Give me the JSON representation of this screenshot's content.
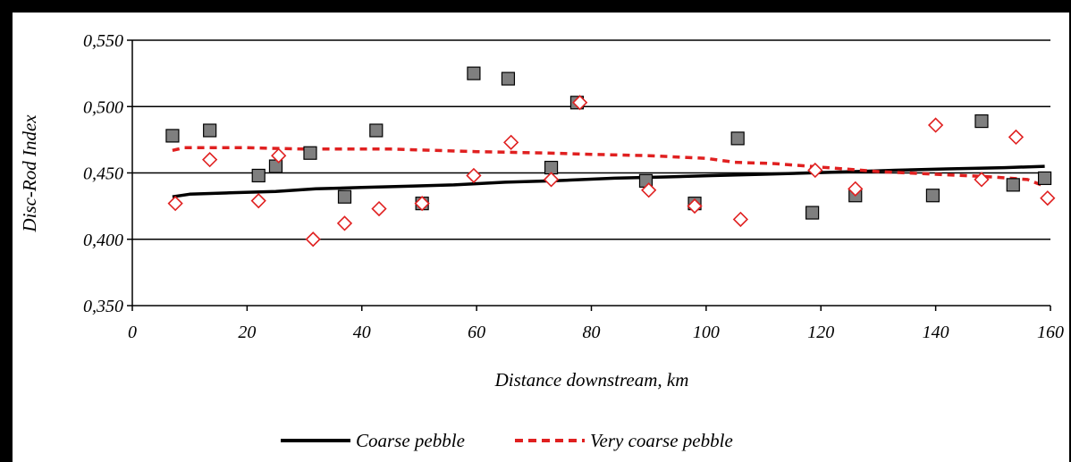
{
  "chart_data": {
    "type": "scatter",
    "title": "",
    "xlabel": "Distance downstream, km",
    "ylabel": "Disc-Rod Index",
    "xlim": [
      0,
      160
    ],
    "ylim": [
      0.35,
      0.55
    ],
    "x_ticks": [
      0,
      20,
      40,
      60,
      80,
      100,
      120,
      140,
      160
    ],
    "y_ticks": [
      0.35,
      0.4,
      0.45,
      0.5,
      0.55
    ],
    "x_tick_labels": [
      "0",
      "20",
      "40",
      "60",
      "80",
      "100",
      "120",
      "140",
      "160"
    ],
    "y_tick_labels": [
      "0,350",
      "0,400",
      "0,450",
      "0,500",
      "0,550"
    ],
    "grid": "horizontal",
    "legend_position": "bottom",
    "series": [
      {
        "name": "Coarse pebble",
        "kind": "markers",
        "marker": "square",
        "color": "#7f7f7f",
        "x": [
          7,
          13.5,
          22,
          25,
          31,
          37,
          42.5,
          50.5,
          59.5,
          65.5,
          73,
          77.5,
          89.5,
          98,
          105.5,
          118.5,
          126,
          139.5,
          148,
          153.5,
          159
        ],
        "y": [
          0.478,
          0.482,
          0.448,
          0.455,
          0.465,
          0.432,
          0.482,
          0.427,
          0.525,
          0.521,
          0.454,
          0.503,
          0.444,
          0.427,
          0.476,
          0.42,
          0.433,
          0.433,
          0.489,
          0.441,
          0.446
        ]
      },
      {
        "name": "Very coarse pebble",
        "kind": "markers",
        "marker": "diamond",
        "color": "#e02020",
        "x": [
          7.5,
          13.5,
          22,
          25.5,
          31.5,
          37,
          43,
          50.5,
          59.5,
          66,
          73,
          78,
          90,
          98,
          106,
          119,
          126,
          140,
          148,
          154,
          159.5
        ],
        "y": [
          0.427,
          0.46,
          0.429,
          0.463,
          0.4,
          0.412,
          0.423,
          0.427,
          0.448,
          0.473,
          0.445,
          0.503,
          0.437,
          0.425,
          0.415,
          0.452,
          0.438,
          0.486,
          0.445,
          0.477,
          0.431
        ]
      },
      {
        "name": "Coarse pebble",
        "kind": "line",
        "style": "solid",
        "color": "#000000",
        "x": [
          7,
          10,
          17,
          25,
          32,
          40,
          48,
          56,
          65,
          73,
          84,
          93,
          101,
          110,
          118,
          126,
          133,
          142,
          152,
          159
        ],
        "y": [
          0.432,
          0.434,
          0.435,
          0.436,
          0.438,
          0.439,
          0.44,
          0.441,
          0.443,
          0.444,
          0.446,
          0.447,
          0.448,
          0.449,
          0.45,
          0.451,
          0.452,
          0.453,
          0.454,
          0.455
        ]
      },
      {
        "name": "Very coarse pebble",
        "kind": "line",
        "style": "dashed",
        "color": "#e02020",
        "x": [
          7,
          9,
          20,
          30,
          45,
          60,
          72,
          80,
          90,
          100,
          105,
          112,
          118,
          124,
          130,
          140,
          150,
          156,
          159
        ],
        "y": [
          0.467,
          0.469,
          0.469,
          0.468,
          0.468,
          0.466,
          0.465,
          0.464,
          0.463,
          0.461,
          0.458,
          0.457,
          0.455,
          0.453,
          0.451,
          0.449,
          0.447,
          0.445,
          0.44
        ]
      }
    ]
  }
}
